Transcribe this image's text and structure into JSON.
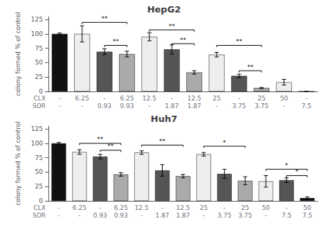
{
  "chart_data": [
    {
      "type": "bar",
      "title": "HepG2",
      "ylabel": "colony formed % of control",
      "x_rows": [
        {
          "name": "CLX",
          "labels": [
            "-",
            "6.25",
            "-",
            "6.25",
            "12.5",
            "-",
            "12.5",
            "25",
            "-",
            "25",
            "50",
            "-"
          ]
        },
        {
          "name": "SOR",
          "labels": [
            "-",
            "-",
            "0.93",
            "0.93",
            "-",
            "1.87",
            "1.87",
            "-",
            "3.75",
            "3.75",
            "-",
            "7.5"
          ]
        }
      ],
      "values": [
        100,
        100,
        69,
        65,
        95,
        73,
        33,
        64,
        27,
        6,
        16,
        0
      ],
      "errors": [
        1.5,
        14,
        5,
        5,
        7,
        8,
        3,
        4,
        3,
        1,
        5,
        0
      ],
      "colors": [
        "#111111",
        "#eeeeee",
        "#555555",
        "#aaaaaa",
        "#eeeeee",
        "#555555",
        "#aaaaaa",
        "#eeeeee",
        "#555555",
        "#aaaaaa",
        "#eeeeee",
        "#555555"
      ],
      "brackets": [
        {
          "from": 1,
          "to": 3,
          "y": 120,
          "label": "**"
        },
        {
          "from": 2,
          "to": 3,
          "y": 80,
          "label": "**"
        },
        {
          "from": 4,
          "to": 6,
          "y": 107,
          "label": "**"
        },
        {
          "from": 5,
          "to": 6,
          "y": 83,
          "label": "**"
        },
        {
          "from": 7,
          "to": 9,
          "y": 80,
          "label": "**"
        },
        {
          "from": 8,
          "to": 9,
          "y": 36,
          "label": "**"
        }
      ],
      "ylim": [
        0,
        130
      ],
      "yticks": [
        0,
        25,
        50,
        75,
        100,
        125
      ],
      "grid": false
    },
    {
      "type": "bar",
      "title": "Huh7",
      "ylabel": "colony formed % of control",
      "x_rows": [
        {
          "name": "CLX",
          "labels": [
            "-",
            "6.25",
            "-",
            "6.25",
            "12.5",
            "-",
            "12.5",
            "25",
            "-",
            "25",
            "50",
            "-",
            "50"
          ]
        },
        {
          "name": "SOR",
          "labels": [
            "-",
            "-",
            "0.93",
            "0.93",
            "-",
            "1.87",
            "1.87",
            "-",
            "3.75",
            "3.75",
            "-",
            "7.5",
            "7.5"
          ]
        }
      ],
      "values": [
        100,
        85,
        77,
        46,
        84,
        53,
        43,
        81,
        47,
        35,
        34,
        36,
        5
      ],
      "errors": [
        1.5,
        4,
        4,
        3,
        3,
        10,
        3,
        3,
        8,
        7,
        10,
        4,
        2
      ],
      "colors": [
        "#111111",
        "#eeeeee",
        "#555555",
        "#aaaaaa",
        "#eeeeee",
        "#555555",
        "#aaaaaa",
        "#eeeeee",
        "#555555",
        "#aaaaaa",
        "#eeeeee",
        "#555555",
        "#111111"
      ],
      "brackets": [
        {
          "from": 1,
          "to": 3,
          "y": 100,
          "label": "**"
        },
        {
          "from": 2,
          "to": 3,
          "y": 88,
          "label": "**"
        },
        {
          "from": 4,
          "to": 6,
          "y": 97,
          "label": "**"
        },
        {
          "from": 7,
          "to": 9,
          "y": 95,
          "label": "*"
        },
        {
          "from": 10,
          "to": 12,
          "y": 55,
          "label": "*"
        },
        {
          "from": 11,
          "to": 12,
          "y": 44,
          "label": "*"
        }
      ],
      "ylim": [
        0,
        130
      ],
      "yticks": [
        0,
        25,
        50,
        75,
        100,
        125
      ],
      "grid": false
    }
  ]
}
